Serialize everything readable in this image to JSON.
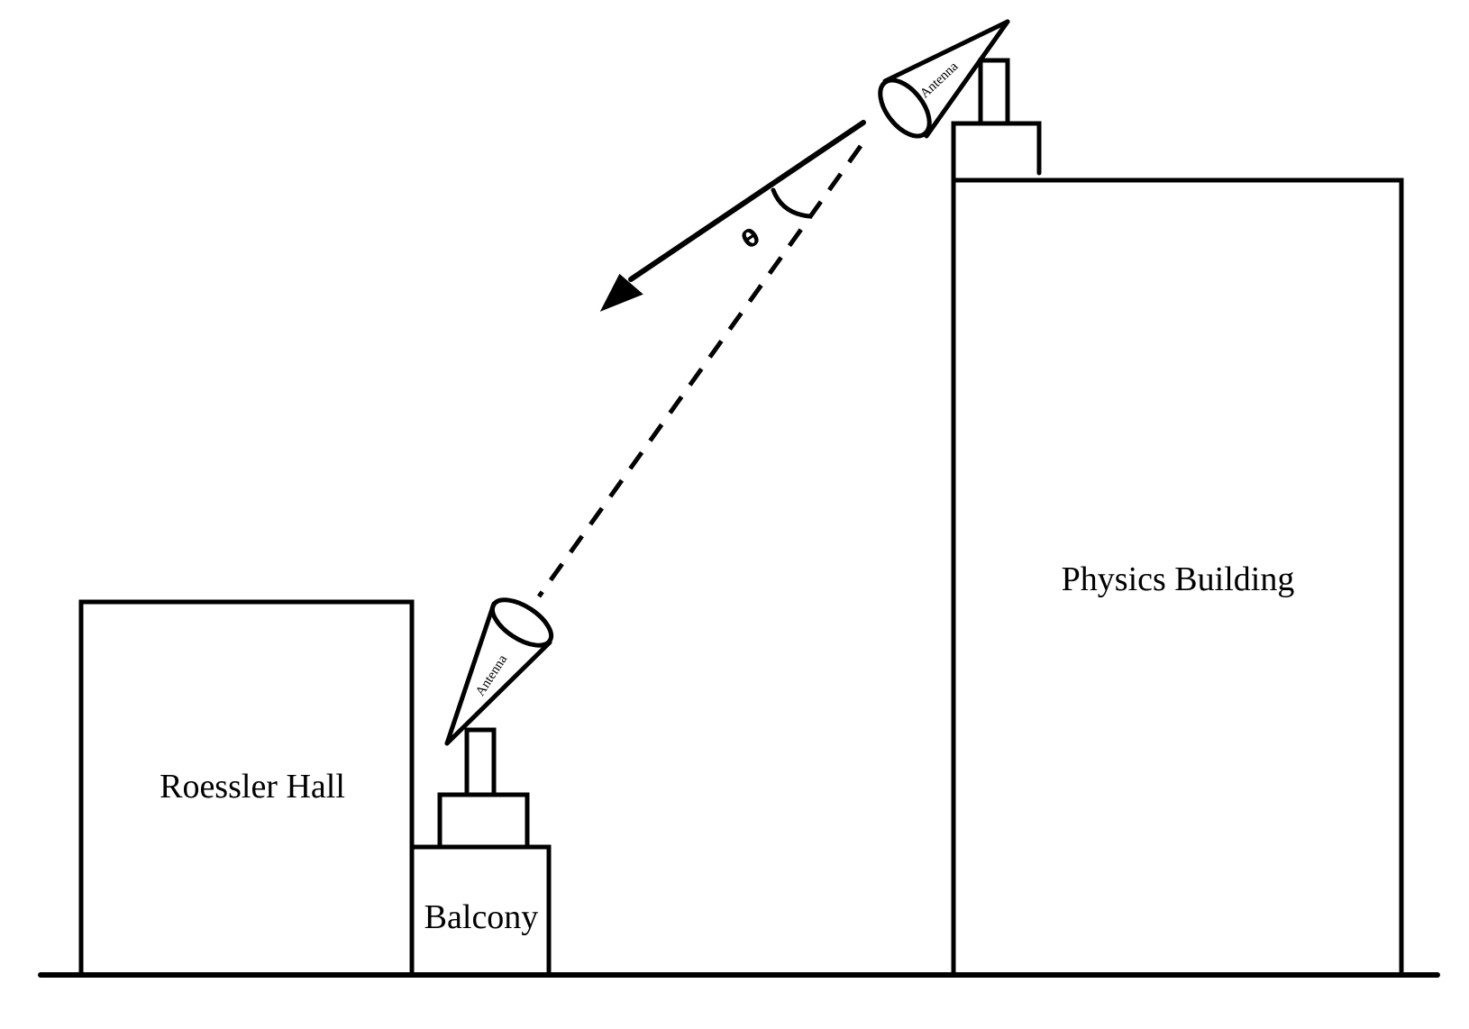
{
  "labels": {
    "left_building": "Roessler Hall",
    "balcony": "Balcony",
    "right_building": "Physics Building",
    "antenna_top": "Antenna",
    "antenna_bottom": "Antenna",
    "angle": "θ"
  }
}
